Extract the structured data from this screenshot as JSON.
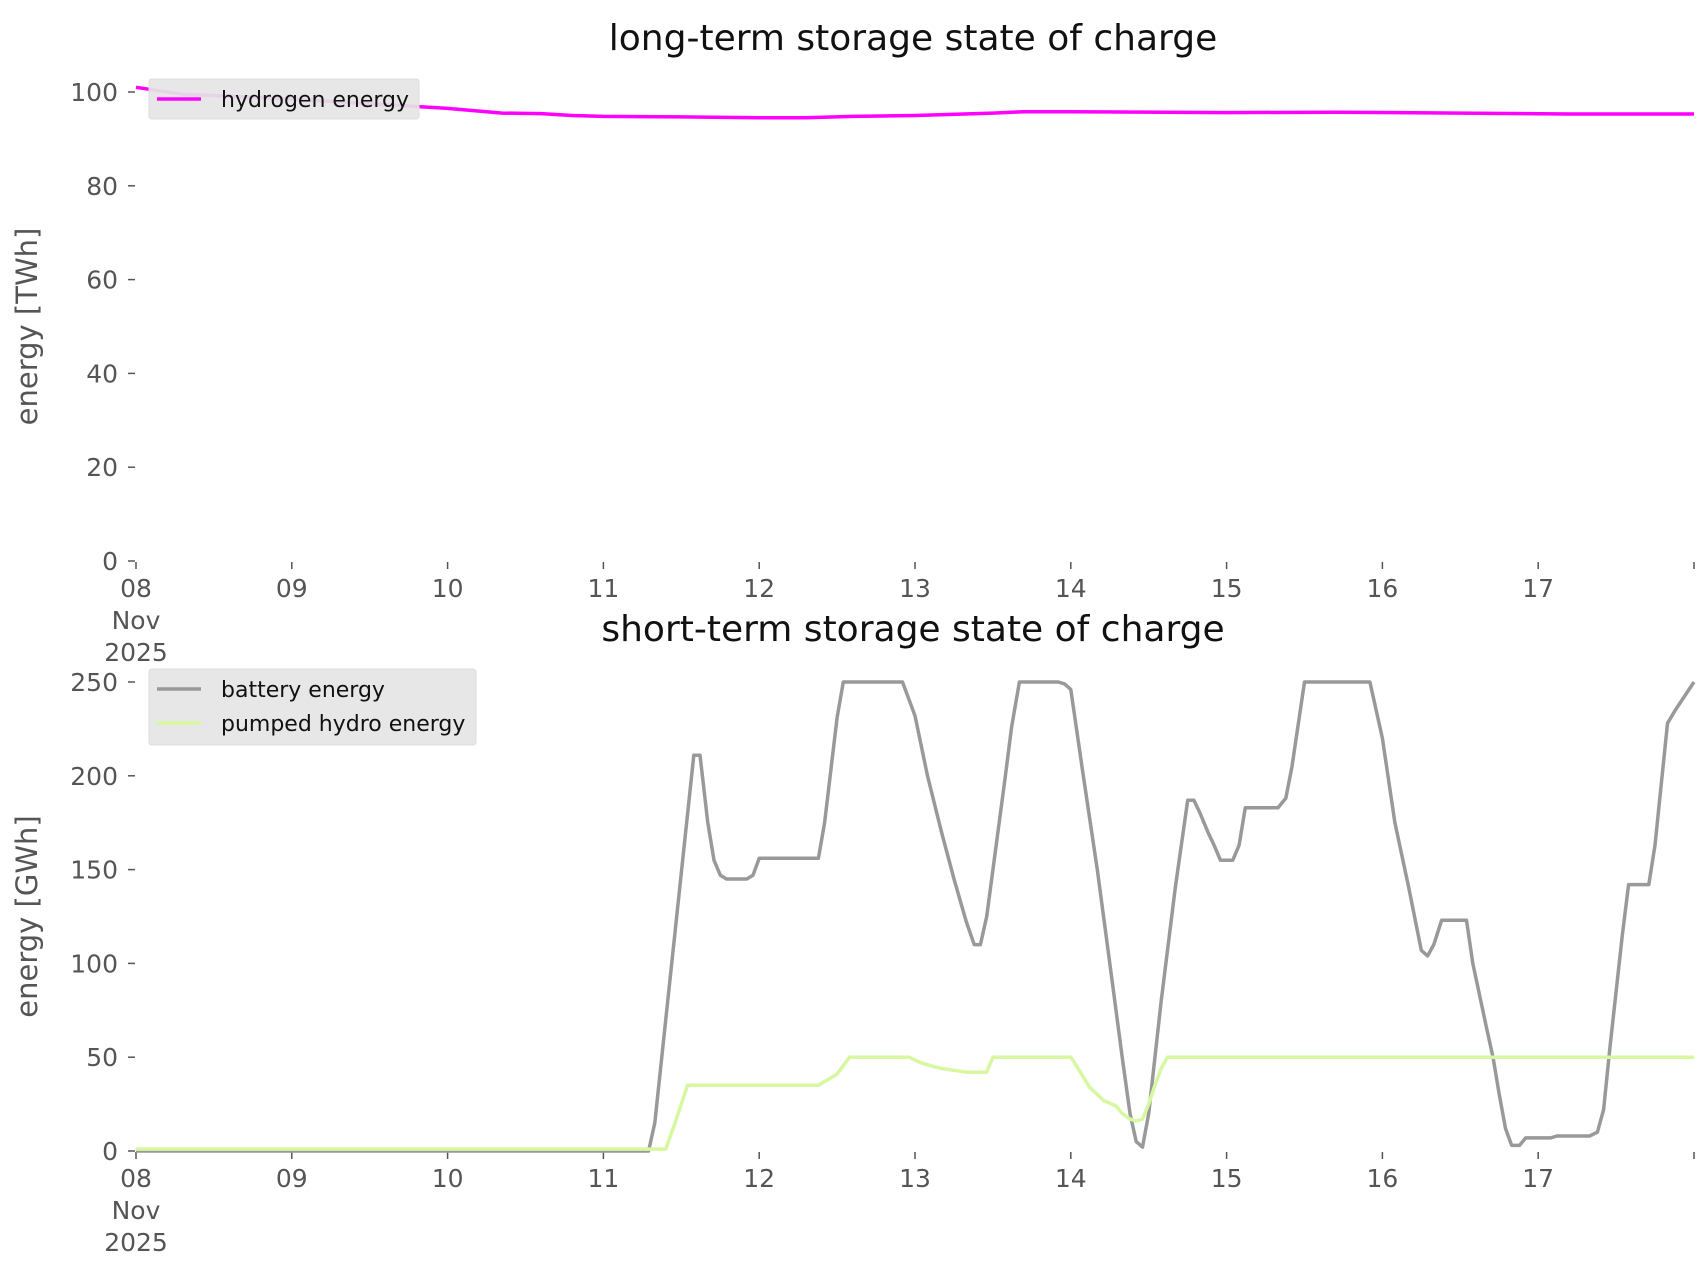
{
  "chart_data": [
    {
      "type": "line",
      "title": "long-term storage state of charge",
      "xlabel": "",
      "ylabel": "energy [TWh]",
      "x_tick_labels": [
        "08\nNov\n2025",
        "09",
        "10",
        "11",
        "12",
        "13",
        "14",
        "15",
        "16",
        "17"
      ],
      "x_tick_values": [
        0,
        1,
        2,
        3,
        4,
        5,
        6,
        7,
        8,
        9
      ],
      "xlim": [
        0,
        10
      ],
      "y_tick_labels": [
        "0",
        "20",
        "40",
        "60",
        "80",
        "100"
      ],
      "ylim": [
        0,
        100
      ],
      "grid": false,
      "legend_position": "upper-left",
      "series": [
        {
          "name": "hydrogen energy",
          "color": "#ff00ff",
          "points": [
            [
              0,
              101
            ],
            [
              0.3,
              99.5
            ],
            [
              1,
              98.5
            ],
            [
              2,
              96.5
            ],
            [
              2.35,
              95.5
            ],
            [
              2.6,
              95.4
            ],
            [
              2.8,
              95
            ],
            [
              3,
              94.8
            ],
            [
              3.5,
              94.7
            ],
            [
              4,
              94.5
            ],
            [
              4.3,
              94.5
            ],
            [
              4.6,
              94.8
            ],
            [
              5,
              95
            ],
            [
              5.5,
              95.5
            ],
            [
              5.7,
              95.8
            ],
            [
              6,
              95.8
            ],
            [
              7,
              95.6
            ],
            [
              7.7,
              95.7
            ],
            [
              8.5,
              95.5
            ],
            [
              9.2,
              95.3
            ],
            [
              10,
              95.3
            ]
          ]
        }
      ]
    },
    {
      "type": "line",
      "title": "short-term storage state of charge",
      "xlabel": "",
      "ylabel": "energy [GWh]",
      "x_tick_labels": [
        "08\nNov\n2025",
        "09",
        "10",
        "11",
        "12",
        "13",
        "14",
        "15",
        "16",
        "17"
      ],
      "x_tick_values": [
        0,
        1,
        2,
        3,
        4,
        5,
        6,
        7,
        8,
        9
      ],
      "xlim": [
        0,
        10
      ],
      "y_tick_labels": [
        "0",
        "50",
        "100",
        "150",
        "200",
        "250"
      ],
      "ylim": [
        0,
        250
      ],
      "grid": false,
      "legend_position": "upper-left",
      "series": [
        {
          "name": "battery energy",
          "color": "#999999",
          "points": [
            [
              0,
              0
            ],
            [
              3.29,
              0
            ],
            [
              3.33,
              15
            ],
            [
              3.58,
              211
            ],
            [
              3.62,
              211
            ],
            [
              3.67,
              175
            ],
            [
              3.71,
              155
            ],
            [
              3.75,
              147
            ],
            [
              3.79,
              145
            ],
            [
              3.92,
              145
            ],
            [
              3.96,
              147
            ],
            [
              4,
              156
            ],
            [
              4.38,
              156
            ],
            [
              4.42,
              175
            ],
            [
              4.5,
              231
            ],
            [
              4.54,
              250
            ],
            [
              4.92,
              250
            ],
            [
              5,
              232
            ],
            [
              5.08,
              200
            ],
            [
              5.17,
              170
            ],
            [
              5.25,
              145
            ],
            [
              5.33,
              122
            ],
            [
              5.38,
              110
            ],
            [
              5.42,
              110
            ],
            [
              5.46,
              125
            ],
            [
              5.58,
              200
            ],
            [
              5.62,
              226
            ],
            [
              5.67,
              250
            ],
            [
              5.92,
              250
            ],
            [
              5.96,
              249
            ],
            [
              6,
              246
            ],
            [
              6.08,
              200
            ],
            [
              6.17,
              150
            ],
            [
              6.25,
              100
            ],
            [
              6.33,
              50
            ],
            [
              6.38,
              20
            ],
            [
              6.42,
              5
            ],
            [
              6.46,
              2
            ],
            [
              6.5,
              20
            ],
            [
              6.58,
              80
            ],
            [
              6.67,
              140
            ],
            [
              6.75,
              187
            ],
            [
              6.79,
              187
            ],
            [
              6.83,
              180
            ],
            [
              6.88,
              170
            ],
            [
              6.92,
              163
            ],
            [
              6.96,
              155
            ],
            [
              7.04,
              155
            ],
            [
              7.08,
              163
            ],
            [
              7.12,
              183
            ],
            [
              7.33,
              183
            ],
            [
              7.38,
              188
            ],
            [
              7.42,
              205
            ],
            [
              7.5,
              250
            ],
            [
              7.92,
              250
            ],
            [
              8,
              220
            ],
            [
              8.08,
              175
            ],
            [
              8.17,
              140
            ],
            [
              8.25,
              107
            ],
            [
              8.29,
              104
            ],
            [
              8.33,
              110
            ],
            [
              8.38,
              123
            ],
            [
              8.54,
              123
            ],
            [
              8.58,
              100
            ],
            [
              8.67,
              65
            ],
            [
              8.71,
              50
            ],
            [
              8.75,
              30
            ],
            [
              8.79,
              12
            ],
            [
              8.83,
              3
            ],
            [
              8.88,
              3
            ],
            [
              8.92,
              7
            ],
            [
              9.08,
              7
            ],
            [
              9.12,
              8
            ],
            [
              9.33,
              8
            ],
            [
              9.38,
              10
            ],
            [
              9.42,
              22
            ],
            [
              9.46,
              55
            ],
            [
              9.54,
              115
            ],
            [
              9.58,
              142
            ],
            [
              9.71,
              142
            ],
            [
              9.75,
              163
            ],
            [
              9.83,
              228
            ],
            [
              9.88,
              235
            ],
            [
              10,
              250
            ]
          ]
        },
        {
          "name": "pumped hydro energy",
          "color": "#d7f7a0",
          "points": [
            [
              0,
              1
            ],
            [
              3.4,
              1
            ],
            [
              3.46,
              15
            ],
            [
              3.54,
              35
            ],
            [
              4.38,
              35
            ],
            [
              4.5,
              41
            ],
            [
              4.58,
              50
            ],
            [
              4.96,
              50
            ],
            [
              5.04,
              47
            ],
            [
              5.12,
              45
            ],
            [
              5.17,
              44
            ],
            [
              5.25,
              43
            ],
            [
              5.33,
              42
            ],
            [
              5.46,
              42
            ],
            [
              5.5,
              50
            ],
            [
              6,
              50
            ],
            [
              6.04,
              45
            ],
            [
              6.12,
              34
            ],
            [
              6.21,
              27
            ],
            [
              6.29,
              24
            ],
            [
              6.33,
              20
            ],
            [
              6.38,
              17
            ],
            [
              6.42,
              16
            ],
            [
              6.46,
              17
            ],
            [
              6.5,
              25
            ],
            [
              6.54,
              35
            ],
            [
              6.58,
              44
            ],
            [
              6.62,
              50
            ],
            [
              10,
              50
            ]
          ]
        }
      ]
    }
  ]
}
